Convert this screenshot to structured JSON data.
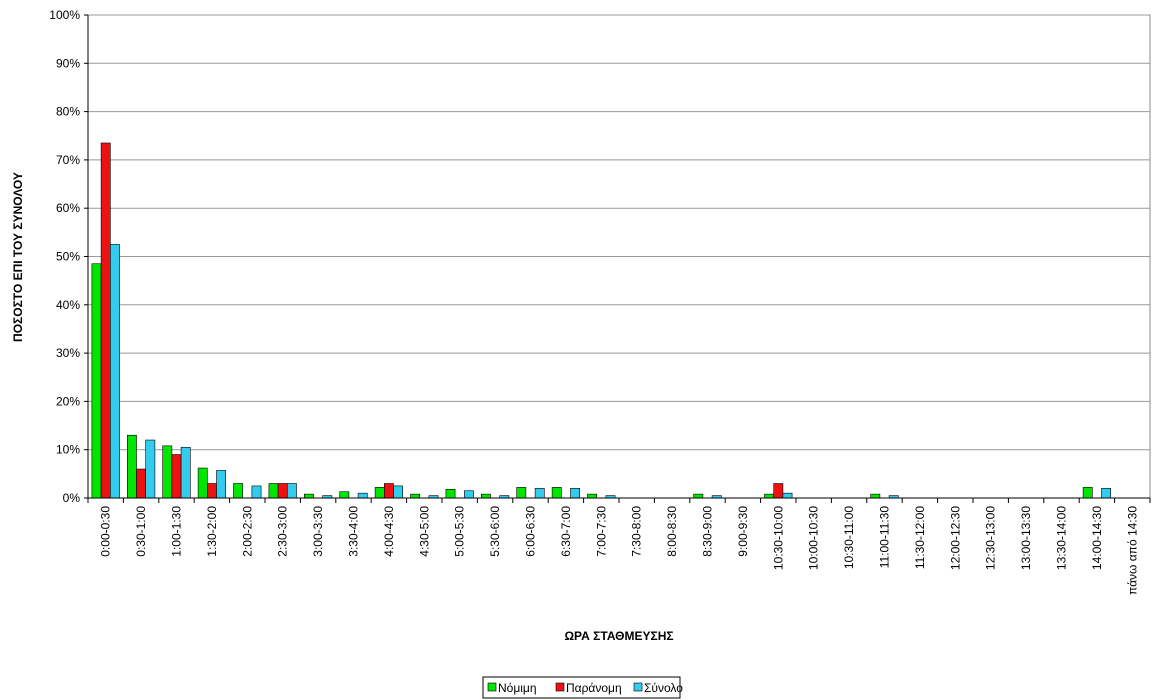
{
  "chart_data": {
    "type": "bar",
    "y_label": "ΠΟΣΟΣΤΟ  ΕΠΙ ΤΟΥ ΣΥΝΟΛΟΥ",
    "x_label": "ΩΡΑ ΣΤΑΘΜΕΥΣΗΣ",
    "categories": [
      "0:00-0:30",
      "0:30-1:00",
      "1:00-1:30",
      "1:30-2:00",
      "2:00-2:30",
      "2:30-3:00",
      "3:00-3:30",
      "3:30-4:00",
      "4:00-4:30",
      "4:30-5:00",
      "5:00-5:30",
      "5:30-6:00",
      "6:00-6:30",
      "6:30-7:00",
      "7:00-7:30",
      "7:30-8:00",
      "8:00-8:30",
      "8:30-9:00",
      "9:00-9:30",
      "10:30-10:00",
      "10:00-10:30",
      "10:30-11:00",
      "11:00-11:30",
      "11:30-12:00",
      "12:00-12:30",
      "12:30-13:00",
      "13:00-13:30",
      "13:30-14:00",
      "14:00-14:30",
      "πάνω  από 14:30"
    ],
    "series": [
      {
        "name": "Νόμιμη",
        "color": "#00e600",
        "values": [
          48.5,
          13,
          10.8,
          6.2,
          3,
          3,
          0.8,
          1.3,
          2.2,
          0.8,
          1.8,
          0.8,
          2.2,
          2.2,
          0.8,
          0,
          0,
          0.8,
          0,
          0.8,
          0,
          0,
          0.8,
          0,
          0,
          0,
          0,
          0,
          2.2,
          0
        ]
      },
      {
        "name": "Παράνομη",
        "color": "#ee1111",
        "values": [
          73.5,
          6,
          9,
          3,
          0,
          3,
          0,
          0,
          3,
          0,
          0,
          0,
          0,
          0,
          0,
          0,
          0,
          0,
          0,
          3,
          0,
          0,
          0,
          0,
          0,
          0,
          0,
          0,
          0,
          0
        ]
      },
      {
        "name": "Σύνολο",
        "color": "#33ccee",
        "values": [
          52.5,
          12,
          10.5,
          5.7,
          2.5,
          3,
          0.5,
          1,
          2.5,
          0.5,
          1.5,
          0.5,
          2,
          2,
          0.5,
          0,
          0,
          0.5,
          0,
          1,
          0,
          0,
          0.5,
          0,
          0,
          0,
          0,
          0,
          2,
          0
        ]
      }
    ],
    "ylim": [
      0,
      100
    ],
    "yticks": [
      {
        "value": 0,
        "label": "0%"
      },
      {
        "value": 10,
        "label": "10%"
      },
      {
        "value": 20,
        "label": "20%"
      },
      {
        "value": 30,
        "label": "30%"
      },
      {
        "value": 40,
        "label": "40%"
      },
      {
        "value": 50,
        "label": "50%"
      },
      {
        "value": 60,
        "label": "60%"
      },
      {
        "value": 70,
        "label": "70%"
      },
      {
        "value": 80,
        "label": "80%"
      },
      {
        "value": 90,
        "label": "90%"
      },
      {
        "value": 100,
        "label": "100%"
      }
    ],
    "grid": true,
    "legend": "bottom"
  }
}
